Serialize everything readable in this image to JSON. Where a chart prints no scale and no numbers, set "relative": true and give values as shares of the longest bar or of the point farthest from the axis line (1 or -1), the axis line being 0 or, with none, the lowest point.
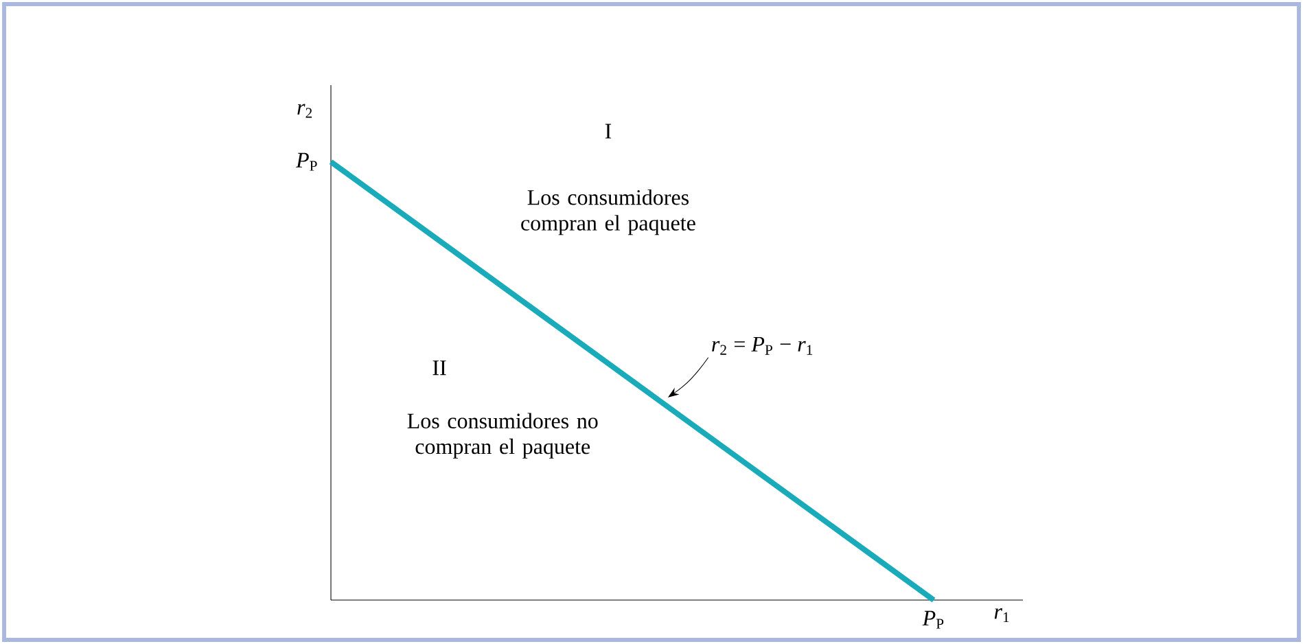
{
  "chart_data": {
    "type": "line",
    "categories": [
      null,
      null
    ],
    "values": [
      1,
      0
    ],
    "color": "#1aabbb",
    "relative": true,
    "xlabel": "*r*$_{1}$",
    "ylabel": "*r*$_{2}$",
    "annotations": [
      "I",
      "Los consumidores compran el paquete",
      "II",
      "Los consumidores no compran el paquete",
      "*P*$_{P}$",
      "*P*$_{P}$",
      "*r*$_{2}$ = *P*$_{P}$ − *r*$_{1}$"
    ]
  }
}
